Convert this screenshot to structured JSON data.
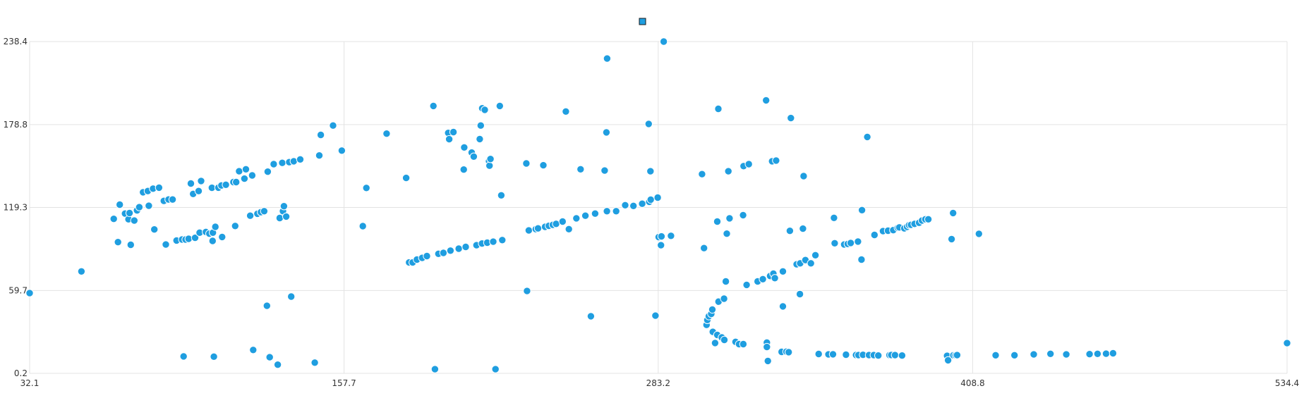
{
  "colors": {
    "series": "#1f9ee0",
    "grid": "#e3e3e3",
    "axis_text": "#333333"
  },
  "chart_data": {
    "type": "scatter",
    "title": "",
    "xlabel": "",
    "ylabel": "",
    "grid": true,
    "legend": {
      "placement": "top-center",
      "entries": [
        {
          "name": "",
          "marker": "square"
        }
      ]
    },
    "xlim": [
      32.1,
      534.4
    ],
    "ylim": [
      0.2,
      238.4
    ],
    "x_ticks": [
      "32.1",
      "157.7",
      "283.2",
      "408.8",
      "534.4"
    ],
    "y_ticks": [
      "238.4",
      "178.8",
      "119.3",
      "59.7",
      "0.2"
    ],
    "series": [
      {
        "name": "",
        "points": [
          [
            32.1,
            57.8
          ],
          [
            52.8,
            73.4
          ],
          [
            65.7,
            111.1
          ],
          [
            67.4,
            94.4
          ],
          [
            68.1,
            121.3
          ],
          [
            70.2,
            114.9
          ],
          [
            71.6,
            110.8
          ],
          [
            72.0,
            115.3
          ],
          [
            72.5,
            92.5
          ],
          [
            73.9,
            109.9
          ],
          [
            75.0,
            117.2
          ],
          [
            75.9,
            119.5
          ],
          [
            77.4,
            130.2
          ],
          [
            79.3,
            131.1
          ],
          [
            79.7,
            120.5
          ],
          [
            81.4,
            132.8
          ],
          [
            81.9,
            103.5
          ],
          [
            83.8,
            133.5
          ],
          [
            85.7,
            124.0
          ],
          [
            86.5,
            92.7
          ],
          [
            87.6,
            125.0
          ],
          [
            89.2,
            125.0
          ],
          [
            90.8,
            95.6
          ],
          [
            93.0,
            96.3
          ],
          [
            93.6,
            12.4
          ],
          [
            94.4,
            96.3
          ],
          [
            95.6,
            96.8
          ],
          [
            96.5,
            136.5
          ],
          [
            97.4,
            129.0
          ],
          [
            98.2,
            97.5
          ],
          [
            99.6,
            131.1
          ],
          [
            100.0,
            101.2
          ],
          [
            100.6,
            138.3
          ],
          [
            102.5,
            101.7
          ],
          [
            103.9,
            100.5
          ],
          [
            104.9,
            133.4
          ],
          [
            105.2,
            95.3
          ],
          [
            105.3,
            101.2
          ],
          [
            105.7,
            12.2
          ],
          [
            106.3,
            105.4
          ],
          [
            107.5,
            133.5
          ],
          [
            108.7,
            135.1
          ],
          [
            109.0,
            98.1
          ],
          [
            110.5,
            135.6
          ],
          [
            113.5,
            137.5
          ],
          [
            114.2,
            106.0
          ],
          [
            114.6,
            137.5
          ],
          [
            115.8,
            145.3
          ],
          [
            117.9,
            140.0
          ],
          [
            118.5,
            146.7
          ],
          [
            120.2,
            113.4
          ],
          [
            121.0,
            142.3
          ],
          [
            121.4,
            17.0
          ],
          [
            123.1,
            114.8
          ],
          [
            124.5,
            115.9
          ],
          [
            125.8,
            116.6
          ],
          [
            127.2,
            145.0
          ],
          [
            126.9,
            48.7
          ],
          [
            128.0,
            11.8
          ],
          [
            129.6,
            150.4
          ],
          [
            131.2,
            6.4
          ],
          [
            132.0,
            111.7
          ],
          [
            133.0,
            151.3
          ],
          [
            133.3,
            116.6
          ],
          [
            133.7,
            120.2
          ],
          [
            134.6,
            112.8
          ],
          [
            135.8,
            151.8
          ],
          [
            136.6,
            55.3
          ],
          [
            137.6,
            152.5
          ],
          [
            140.2,
            153.8
          ],
          [
            146.0,
            7.9
          ],
          [
            147.8,
            156.6
          ],
          [
            148.4,
            171.4
          ],
          [
            153.3,
            178.1
          ],
          [
            156.8,
            160.1
          ],
          [
            165.2,
            105.9
          ],
          [
            166.6,
            133.3
          ],
          [
            174.7,
            172.3
          ],
          [
            182.5,
            140.5
          ],
          [
            183.7,
            79.8
          ],
          [
            185.1,
            79.8
          ],
          [
            186.8,
            81.9
          ],
          [
            188.9,
            83.1
          ],
          [
            190.8,
            84.4
          ],
          [
            193.4,
            192.2
          ],
          [
            194.0,
            3.2
          ],
          [
            195.4,
            86.0
          ],
          [
            197.4,
            86.7
          ],
          [
            199.3,
            172.8
          ],
          [
            199.7,
            168.3
          ],
          [
            200.2,
            88.3
          ],
          [
            201.4,
            173.4
          ],
          [
            203.5,
            89.7
          ],
          [
            205.7,
            162.4
          ],
          [
            205.5,
            146.5
          ],
          [
            206.3,
            91.0
          ],
          [
            208.7,
            158.7
          ],
          [
            209.5,
            155.8
          ],
          [
            210.6,
            92.2
          ],
          [
            211.9,
            168.4
          ],
          [
            212.3,
            178.1
          ],
          [
            212.8,
            93.4
          ],
          [
            212.9,
            190.5
          ],
          [
            213.9,
            189.4
          ],
          [
            214.9,
            94.0
          ],
          [
            215.6,
            152.5
          ],
          [
            215.8,
            149.3
          ],
          [
            216.2,
            154.1
          ],
          [
            217.3,
            94.7
          ],
          [
            218.2,
            3.2
          ],
          [
            219.9,
            192.2
          ],
          [
            220.5,
            128.0
          ],
          [
            220.9,
            95.9
          ],
          [
            230.5,
            150.9
          ],
          [
            230.8,
            59.3
          ],
          [
            231.5,
            102.8
          ],
          [
            234.3,
            103.7
          ],
          [
            235.2,
            104.3
          ],
          [
            237.3,
            149.6
          ],
          [
            238.0,
            105.4
          ],
          [
            239.5,
            106.1
          ],
          [
            241.1,
            106.8
          ],
          [
            242.4,
            107.5
          ],
          [
            245.0,
            109.2
          ],
          [
            246.3,
            188.2
          ],
          [
            247.5,
            103.7
          ],
          [
            250.5,
            111.5
          ],
          [
            252.2,
            146.7
          ],
          [
            254.1,
            113.4
          ],
          [
            256.3,
            41.2
          ],
          [
            258.0,
            114.9
          ],
          [
            261.8,
            145.8
          ],
          [
            262.5,
            173.2
          ],
          [
            262.8,
            226.2
          ],
          [
            262.7,
            116.6
          ],
          [
            266.4,
            116.6
          ],
          [
            270.0,
            120.9
          ],
          [
            273.3,
            120.4
          ],
          [
            276.8,
            122.0
          ],
          [
            279.4,
            179.3
          ],
          [
            279.6,
            123.4
          ],
          [
            280.1,
            145.3
          ],
          [
            280.2,
            124.9
          ],
          [
            283.0,
            126.4
          ],
          [
            284.3,
            92.2
          ],
          [
            282.1,
            41.6
          ],
          [
            283.4,
            98.0
          ],
          [
            284.5,
            98.5
          ],
          [
            285.4,
            238.4
          ],
          [
            288.3,
            98.9
          ],
          [
            300.7,
            143.2
          ],
          [
            301.5,
            90.1
          ],
          [
            302.5,
            35.0
          ],
          [
            302.8,
            38.5
          ],
          [
            303.4,
            41.2
          ],
          [
            304.4,
            42.9
          ],
          [
            304.8,
            46.0
          ],
          [
            305.0,
            30.0
          ],
          [
            305.9,
            22.0
          ],
          [
            306.8,
            27.8
          ],
          [
            306.8,
            109.2
          ],
          [
            307.2,
            190.1
          ],
          [
            307.3,
            51.7
          ],
          [
            308.6,
            26.0
          ],
          [
            309.5,
            53.8
          ],
          [
            309.6,
            24.2
          ],
          [
            310.2,
            66.2
          ],
          [
            310.6,
            100.5
          ],
          [
            311.2,
            145.3
          ],
          [
            311.7,
            111.5
          ],
          [
            314.1,
            22.8
          ],
          [
            315.5,
            21.2
          ],
          [
            317.1,
            113.8
          ],
          [
            317.2,
            21.2
          ],
          [
            317.3,
            149.0
          ],
          [
            318.5,
            63.7
          ],
          [
            319.4,
            150.4
          ],
          [
            322.9,
            66.2
          ],
          [
            325.0,
            67.8
          ],
          [
            326.3,
            196.2
          ],
          [
            326.6,
            22.3
          ],
          [
            326.6,
            19.1
          ],
          [
            327.0,
            9.1
          ],
          [
            327.9,
            70.1
          ],
          [
            328.7,
            152.5
          ],
          [
            329.2,
            71.8
          ],
          [
            329.8,
            68.6
          ],
          [
            330.3,
            153.0
          ],
          [
            332.5,
            15.6
          ],
          [
            333.0,
            73.4
          ],
          [
            333.0,
            48.3
          ],
          [
            334.4,
            15.8
          ],
          [
            335.3,
            15.4
          ],
          [
            335.8,
            102.5
          ],
          [
            336.2,
            183.5
          ],
          [
            338.5,
            78.5
          ],
          [
            339.9,
            79.2
          ],
          [
            339.8,
            57.1
          ],
          [
            341.0,
            104.1
          ],
          [
            341.3,
            141.8
          ],
          [
            342.0,
            81.5
          ],
          [
            344.2,
            79.2
          ],
          [
            346.0,
            85.0
          ],
          [
            347.3,
            14.1
          ],
          [
            351.2,
            13.8
          ],
          [
            353.0,
            13.9
          ],
          [
            353.4,
            111.8
          ],
          [
            353.7,
            93.6
          ],
          [
            357.5,
            92.7
          ],
          [
            358.2,
            13.6
          ],
          [
            358.9,
            93.1
          ],
          [
            360.1,
            93.8
          ],
          [
            362.2,
            13.4
          ],
          [
            363.0,
            94.8
          ],
          [
            363.2,
            13.3
          ],
          [
            364.4,
            81.9
          ],
          [
            364.6,
            117.4
          ],
          [
            365.0,
            13.5
          ],
          [
            366.7,
            169.9
          ],
          [
            367.4,
            13.3
          ],
          [
            369.3,
            13.3
          ],
          [
            369.6,
            99.6
          ],
          [
            371.1,
            13.0
          ],
          [
            373.0,
            102.3
          ],
          [
            375.0,
            102.6
          ],
          [
            375.6,
            13.3
          ],
          [
            376.3,
            13.4
          ],
          [
            377.1,
            103.0
          ],
          [
            377.8,
            13.3
          ],
          [
            378.9,
            104.7
          ],
          [
            379.5,
            105.0
          ],
          [
            380.6,
            13.0
          ],
          [
            381.5,
            104.3
          ],
          [
            382.6,
            105.4
          ],
          [
            383.4,
            106.6
          ],
          [
            384.2,
            106.8
          ],
          [
            385.6,
            107.5
          ],
          [
            387.4,
            108.3
          ],
          [
            388.6,
            109.9
          ],
          [
            389.9,
            110.8
          ],
          [
            391.1,
            110.8
          ],
          [
            398.6,
            12.8
          ],
          [
            399.0,
            9.6
          ],
          [
            401.0,
            115.3
          ],
          [
            400.4,
            96.6
          ],
          [
            401.1,
            13.2
          ],
          [
            402.0,
            13.2
          ],
          [
            402.6,
            13.3
          ],
          [
            411.3,
            100.4
          ],
          [
            418.0,
            13.2
          ],
          [
            425.5,
            13.2
          ],
          [
            433.2,
            13.8
          ],
          [
            439.9,
            14.2
          ],
          [
            446.2,
            13.8
          ],
          [
            455.5,
            14.0
          ],
          [
            458.7,
            14.2
          ],
          [
            462.1,
            14.3
          ],
          [
            464.9,
            14.6
          ],
          [
            534.4,
            21.9
          ]
        ]
      }
    ]
  }
}
